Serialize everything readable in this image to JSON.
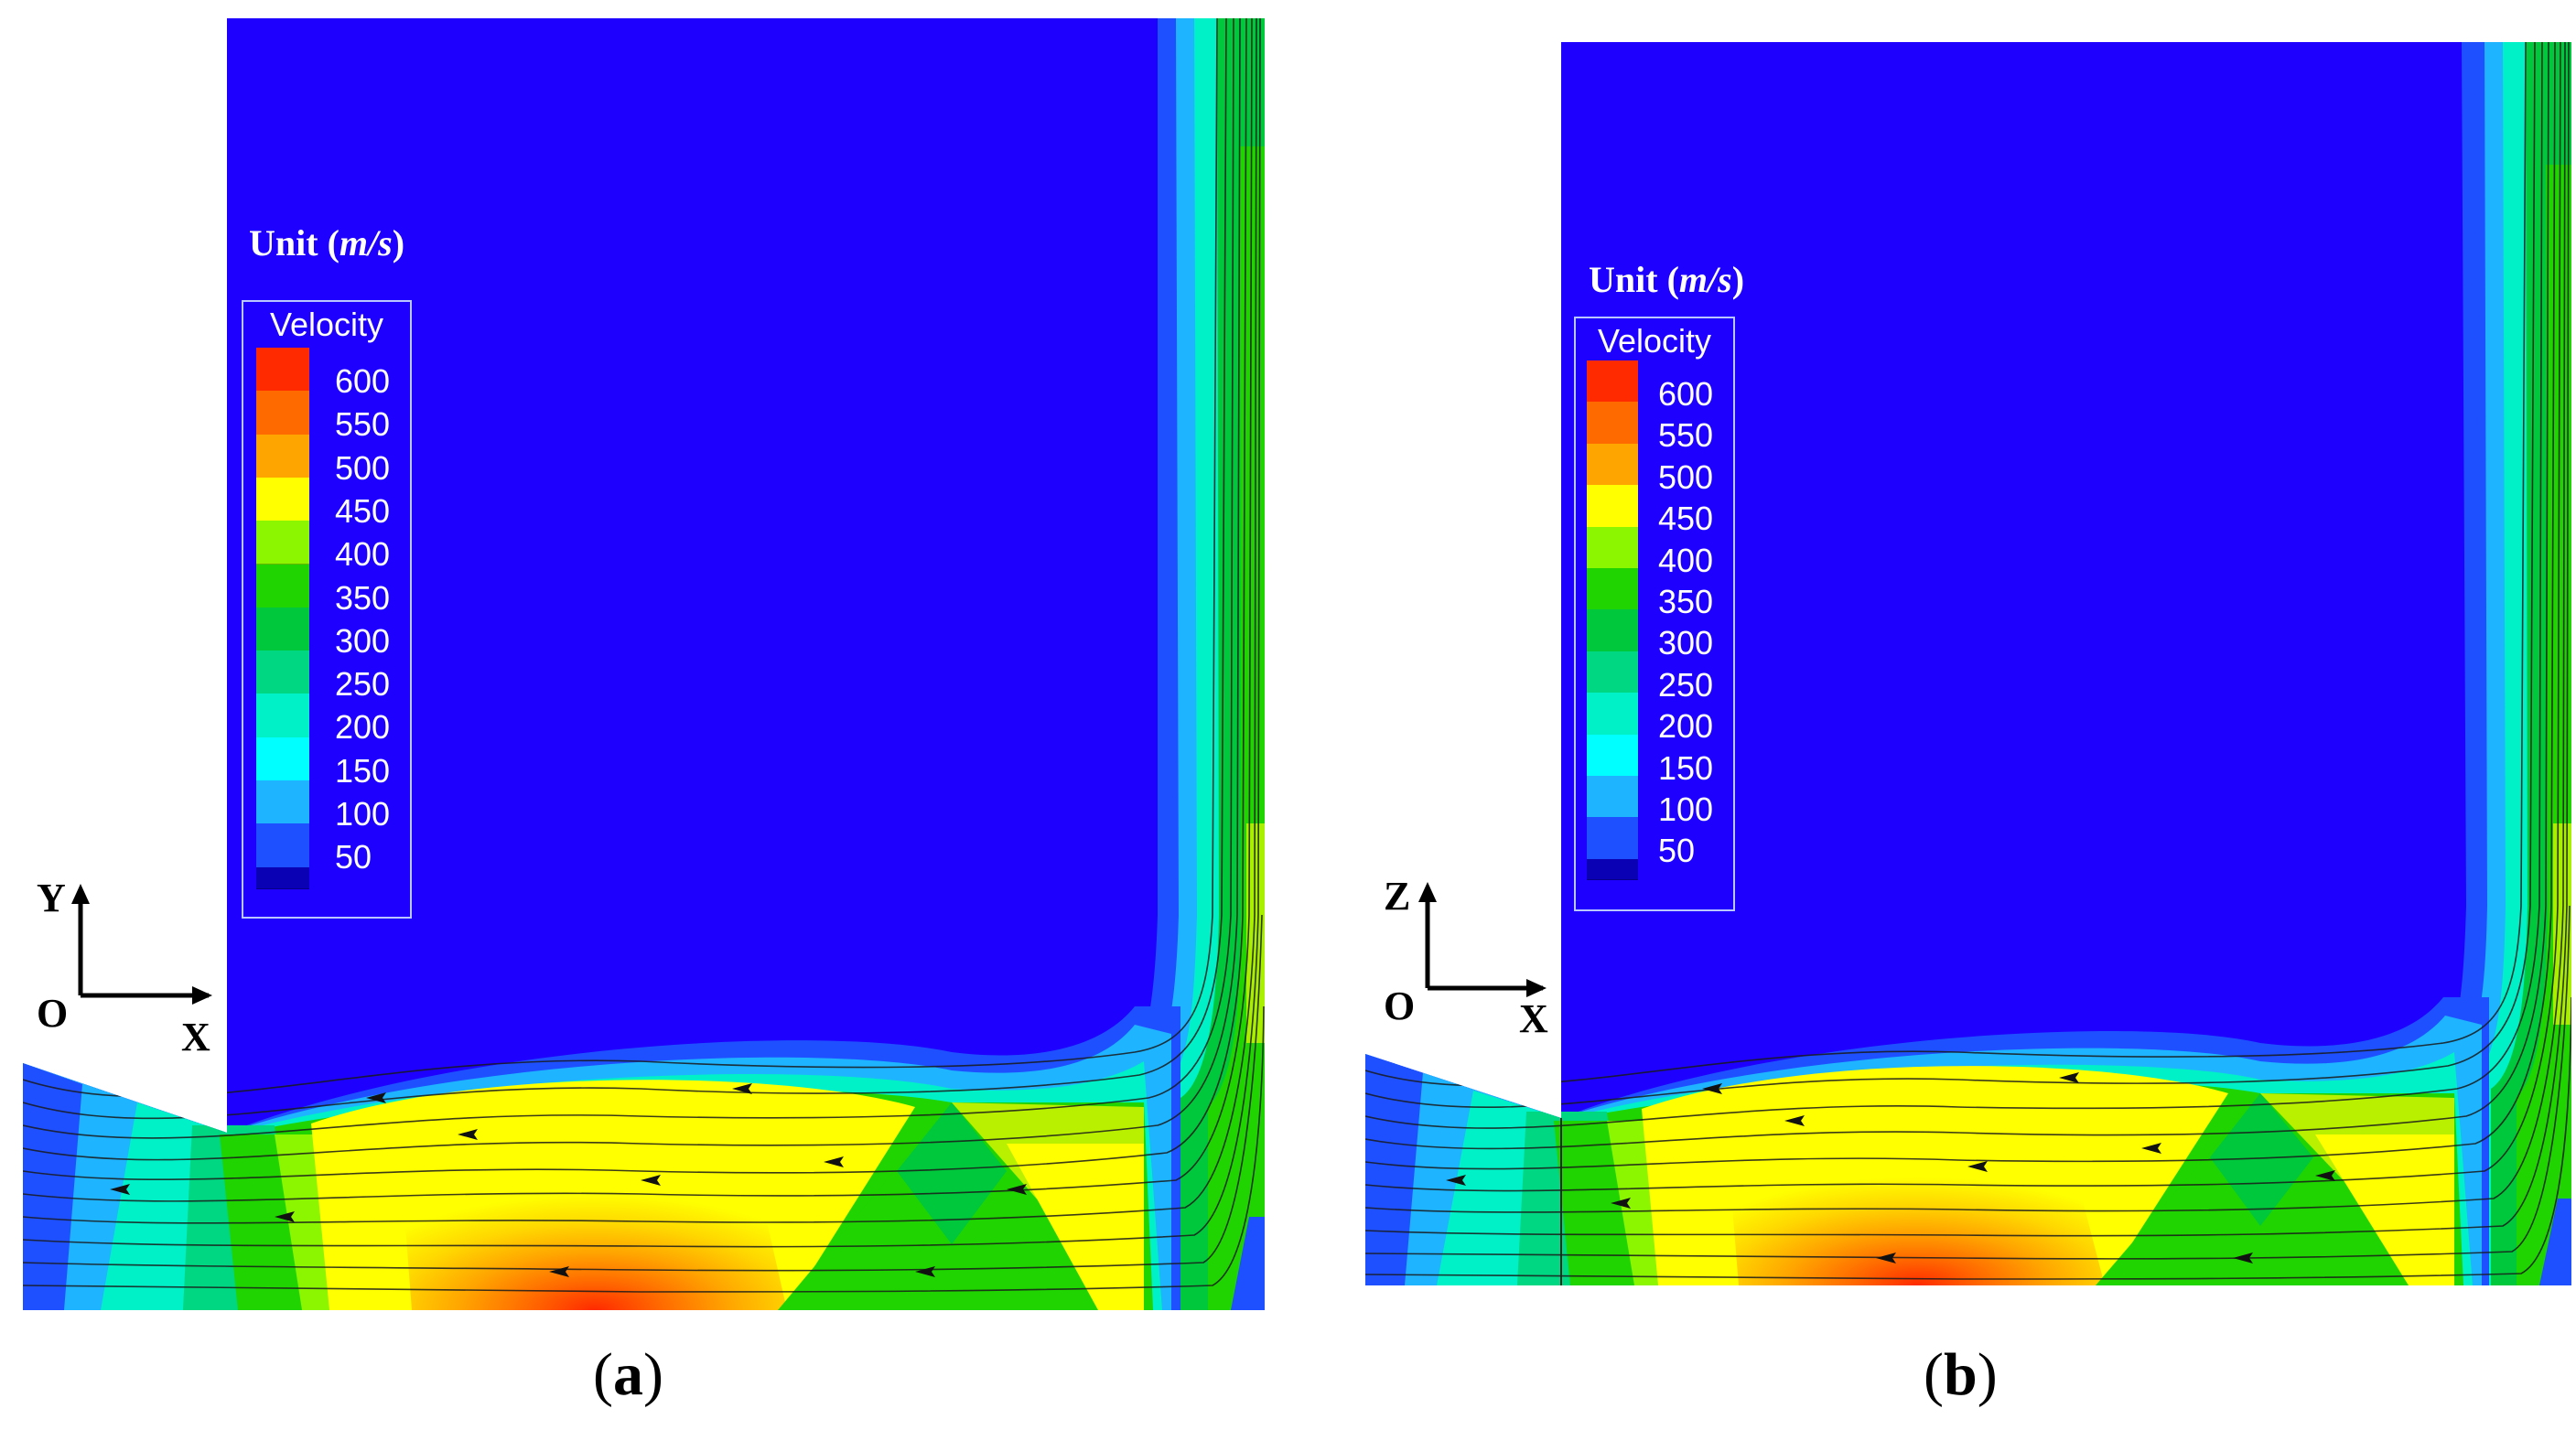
{
  "panels": [
    {
      "caption_letter": "a",
      "unit_prefix": "Unit (",
      "unit_value": "m/s",
      "unit_suffix": ")",
      "axis": {
        "vertical": "Y",
        "horizontal": "X",
        "origin": "O"
      }
    },
    {
      "caption_letter": "b",
      "unit_prefix": "Unit (",
      "unit_value": "m/s",
      "unit_suffix": ")",
      "axis": {
        "vertical": "Z",
        "horizontal": "X",
        "origin": "O"
      }
    }
  ],
  "legend": {
    "title": "Velocity",
    "levels": [
      {
        "label": "600",
        "color": "#ff2a00"
      },
      {
        "label": "550",
        "color": "#ff6a00"
      },
      {
        "label": "500",
        "color": "#ffa500"
      },
      {
        "label": "450",
        "color": "#ffff00"
      },
      {
        "label": "400",
        "color": "#8cf500"
      },
      {
        "label": "350",
        "color": "#1fd400"
      },
      {
        "label": "300",
        "color": "#00c83c"
      },
      {
        "label": "250",
        "color": "#00d782"
      },
      {
        "label": "200",
        "color": "#00f0c8"
      },
      {
        "label": "150",
        "color": "#00ffff"
      },
      {
        "label": "100",
        "color": "#1eb4ff"
      },
      {
        "label": "50",
        "color": "#1e50ff"
      }
    ],
    "bottom_color": "#0a00b4"
  },
  "colors": {
    "background_field": "#1e00ff",
    "border": "#3d3d7a"
  }
}
